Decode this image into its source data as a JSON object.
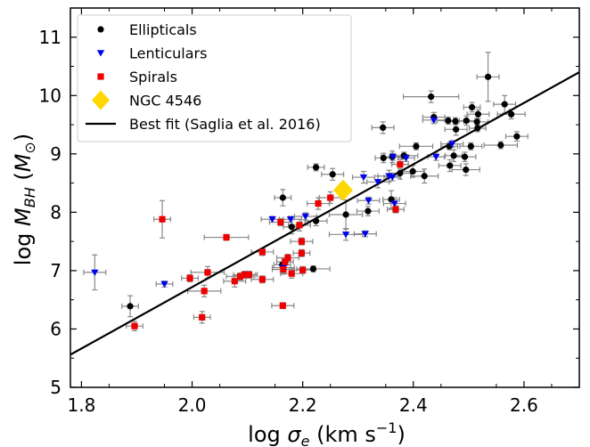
{
  "chart_data": {
    "type": "scatter",
    "xlabel": {
      "prefix": "log ",
      "symbol": "σ",
      "sub": "e",
      "unit_prefix": " (km s",
      "sup": "−1",
      "unit_suffix": ")"
    },
    "ylabel": {
      "prefix": "log ",
      "symbol": "M",
      "sub": "BH",
      "open": " (",
      "unit": "M",
      "unit_sub": "⊙",
      "close": ")"
    },
    "xlim": [
      1.78,
      2.7
    ],
    "ylim": [
      5.0,
      11.5
    ],
    "xticks": [
      1.8,
      2.0,
      2.2,
      2.4,
      2.6
    ],
    "xtick_labels": [
      "1.8",
      "2.0",
      "2.2",
      "2.4",
      "2.6"
    ],
    "yticks": [
      5,
      6,
      7,
      8,
      9,
      10,
      11
    ],
    "ytick_labels": [
      "5",
      "6",
      "7",
      "8",
      "9",
      "10",
      "11"
    ],
    "legend_position": "top-left",
    "colors": {
      "ellipticals": "#000000",
      "lenticulars": "#0000ee",
      "spirals": "#ee0000",
      "ngc": "#ffd700",
      "fit": "#000000",
      "errorbar": "#888888"
    },
    "fit_line": {
      "name": "Best fit (Saglia et al. 2016)",
      "x": [
        1.78,
        2.7
      ],
      "y": [
        5.56,
        10.4
      ]
    },
    "highlight": {
      "name": "NGC 4546",
      "x": 2.273,
      "y": 8.38
    },
    "series": [
      {
        "name": "Ellipticals",
        "marker": "circle",
        "points": [
          [
            1.888,
            6.39,
            0.015,
            0.18
          ],
          [
            2.164,
            8.25,
            0.015,
            0.14
          ],
          [
            2.18,
            7.75,
            0.015,
            0.12
          ],
          [
            2.163,
            7.1,
            0.015,
            0.12
          ],
          [
            2.219,
            7.03,
            0.03,
            0.05
          ],
          [
            2.224,
            7.85,
            0.02,
            0.08
          ],
          [
            2.224,
            8.77,
            0.015,
            0.06
          ],
          [
            2.254,
            8.65,
            0.02,
            0.1
          ],
          [
            2.278,
            7.96,
            0.03,
            0.25
          ],
          [
            2.318,
            8.02,
            0.02,
            0.08
          ],
          [
            2.345,
            9.45,
            0.02,
            0.1
          ],
          [
            2.346,
            8.93,
            0.015,
            0.08
          ],
          [
            2.36,
            8.22,
            0.015,
            0.15
          ],
          [
            2.362,
            8.95,
            0.02,
            0.1
          ],
          [
            2.376,
            8.67,
            0.02,
            0.1
          ],
          [
            2.383,
            8.97,
            0.025,
            0.06
          ],
          [
            2.399,
            8.7,
            0.02,
            0.1
          ],
          [
            2.405,
            9.13,
            0.03,
            0.06
          ],
          [
            2.42,
            8.62,
            0.025,
            0.12
          ],
          [
            2.432,
            9.98,
            0.05,
            0.1
          ],
          [
            2.437,
            9.63,
            0.02,
            0.08
          ],
          [
            2.463,
            9.57,
            0.02,
            0.06
          ],
          [
            2.465,
            9.13,
            0.015,
            0.06
          ],
          [
            2.466,
            8.8,
            0.02,
            0.1
          ],
          [
            2.473,
            8.97,
            0.015,
            0.1
          ],
          [
            2.476,
            9.56,
            0.015,
            0.06
          ],
          [
            2.477,
            9.42,
            0.02,
            0.1
          ],
          [
            2.493,
            8.95,
            0.02,
            0.08
          ],
          [
            2.495,
            8.73,
            0.025,
            0.1
          ],
          [
            2.496,
            9.57,
            0.02,
            0.08
          ],
          [
            2.504,
            9.13,
            0.02,
            0.06
          ],
          [
            2.506,
            9.8,
            0.015,
            0.08
          ],
          [
            2.515,
            9.55,
            0.02,
            0.06
          ],
          [
            2.517,
            9.68,
            0.02,
            0.08
          ],
          [
            2.516,
            9.44,
            0.015,
            0.06
          ],
          [
            2.535,
            10.32,
            0.02,
            0.42
          ],
          [
            2.558,
            9.15,
            0.03,
            0.06
          ],
          [
            2.565,
            9.85,
            0.02,
            0.15
          ],
          [
            2.577,
            9.68,
            0.025,
            0.08
          ],
          [
            2.587,
            9.3,
            0.02,
            0.08
          ]
        ]
      },
      {
        "name": "Lenticulars",
        "marker": "triangle-down",
        "points": [
          [
            1.824,
            6.97,
            0.02,
            0.3
          ],
          [
            1.95,
            6.77,
            0.015,
            0.05
          ],
          [
            2.145,
            7.88,
            0.02,
            0.05
          ],
          [
            2.165,
            7.05,
            0.02,
            0.08
          ],
          [
            2.178,
            7.88,
            0.02,
            0.05
          ],
          [
            2.205,
            7.93,
            0.02,
            0.06
          ],
          [
            2.278,
            7.62,
            0.03,
            0.1
          ],
          [
            2.31,
            8.6,
            0.02,
            0.1
          ],
          [
            2.313,
            7.63,
            0.02,
            0.05
          ],
          [
            2.319,
            8.2,
            0.02,
            0.06
          ],
          [
            2.336,
            8.52,
            0.02,
            0.1
          ],
          [
            2.356,
            8.62,
            0.02,
            0.1
          ],
          [
            2.363,
            8.95,
            0.015,
            0.06
          ],
          [
            2.362,
            8.6,
            0.015,
            0.06
          ],
          [
            2.366,
            8.15,
            0.02,
            0.1
          ],
          [
            2.387,
            8.93,
            0.015,
            0.06
          ],
          [
            2.437,
            9.58,
            0.02,
            0.06
          ],
          [
            2.441,
            8.95,
            0.015,
            0.06
          ],
          [
            2.47,
            9.17,
            0.02,
            0.06
          ]
        ]
      },
      {
        "name": "Spirals",
        "marker": "square",
        "points": [
          [
            1.896,
            6.05,
            0.015,
            0.08
          ],
          [
            1.946,
            7.88,
            0.015,
            0.32
          ],
          [
            1.996,
            6.87,
            0.015,
            0.06
          ],
          [
            2.018,
            6.2,
            0.015,
            0.1
          ],
          [
            2.022,
            6.65,
            0.03,
            0.1
          ],
          [
            2.028,
            6.97,
            0.03,
            0.1
          ],
          [
            2.062,
            7.57,
            0.04,
            0.05
          ],
          [
            2.077,
            6.82,
            0.02,
            0.1
          ],
          [
            2.087,
            6.9,
            0.025,
            0.06
          ],
          [
            2.095,
            6.93,
            0.02,
            0.06
          ],
          [
            2.103,
            6.93,
            0.015,
            0.06
          ],
          [
            2.127,
            6.85,
            0.02,
            0.06
          ],
          [
            2.127,
            7.32,
            0.02,
            0.06
          ],
          [
            2.16,
            7.83,
            0.02,
            0.06
          ],
          [
            2.164,
            6.4,
            0.02,
            0.05
          ],
          [
            2.165,
            7.02,
            0.02,
            0.08
          ],
          [
            2.168,
            7.15,
            0.015,
            0.06
          ],
          [
            2.173,
            7.22,
            0.02,
            0.06
          ],
          [
            2.18,
            6.95,
            0.02,
            0.08
          ],
          [
            2.194,
            7.78,
            0.02,
            0.1
          ],
          [
            2.198,
            7.5,
            0.02,
            0.06
          ],
          [
            2.198,
            7.3,
            0.015,
            0.06
          ],
          [
            2.2,
            7.01,
            0.02,
            0.06
          ],
          [
            2.228,
            8.15,
            0.02,
            0.1
          ],
          [
            2.25,
            8.25,
            0.02,
            0.1
          ],
          [
            2.368,
            8.05,
            0.015,
            0.06
          ],
          [
            2.376,
            8.82,
            0.015,
            0.08
          ]
        ]
      }
    ]
  }
}
